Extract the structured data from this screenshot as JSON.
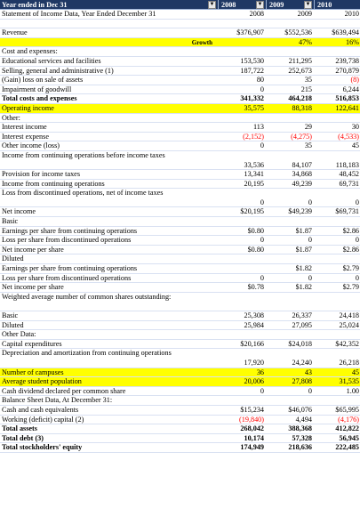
{
  "header": {
    "label": "Year ended in Dec 31",
    "years": [
      "2008",
      "2009",
      "2010"
    ],
    "dropdown_icon": "chevron-down-icon"
  },
  "rows": [
    {
      "label": "Statement of Income Data, Year Ended December 31",
      "values": [
        "2008",
        "2009",
        "2010"
      ]
    },
    {
      "label": "",
      "values": [
        "",
        "",
        ""
      ]
    },
    {
      "label": "Revenue",
      "values": [
        "$376,907",
        "$552,536",
        "$639,494"
      ]
    },
    {
      "label": "Growth",
      "values": [
        "",
        "47%",
        "16%"
      ],
      "style": "growth"
    },
    {
      "label": "Cost and expenses:",
      "values": [
        "",
        "",
        ""
      ]
    },
    {
      "label": "Educational services and facilities",
      "values": [
        "153,530",
        "211,295",
        "239,738"
      ]
    },
    {
      "label": "Selling, general and administrative (1)",
      "values": [
        "187,722",
        "252,673",
        "270,879"
      ]
    },
    {
      "label": "(Gain) loss on sale of assets",
      "values": [
        "80",
        "35",
        "(8)"
      ],
      "neg": [
        false,
        false,
        true
      ]
    },
    {
      "label": "Impairment of goodwill",
      "values": [
        "0",
        "215",
        "6,244"
      ]
    },
    {
      "label": "Total costs and expenses",
      "values": [
        "341,332",
        "464,218",
        "516,853"
      ],
      "style": "bold"
    },
    {
      "label": "Operating income",
      "values": [
        "35,575",
        "88,318",
        "122,641"
      ],
      "style": "yellow"
    },
    {
      "label": "Other:",
      "values": [
        "",
        "",
        ""
      ]
    },
    {
      "label": "Interest income",
      "values": [
        "113",
        "29",
        "30"
      ]
    },
    {
      "label": "Interest expense",
      "values": [
        "(2,152)",
        "(4,275)",
        "(4,533)"
      ],
      "neg": [
        true,
        true,
        true
      ]
    },
    {
      "label": "Other income (loss)",
      "values": [
        "0",
        "35",
        "45"
      ]
    },
    {
      "label": "Income from continuing operations before income taxes",
      "values": [
        "33,536",
        "84,107",
        "118,183"
      ],
      "style": "tall"
    },
    {
      "label": "Provision for income taxes",
      "values": [
        "13,341",
        "34,868",
        "48,452"
      ]
    },
    {
      "label": "Income from continuing operations",
      "values": [
        "20,195",
        "49,239",
        "69,731"
      ]
    },
    {
      "label": "Loss from discontinued operations, net of income taxes",
      "values": [
        "0",
        "0",
        "0"
      ],
      "style": "tall"
    },
    {
      "label": "Net income",
      "values": [
        "$20,195",
        "$49,239",
        "$69,731"
      ]
    },
    {
      "label": "Basic",
      "values": [
        "",
        "",
        ""
      ]
    },
    {
      "label": "Earnings per share from continuing operations",
      "values": [
        "$0.80",
        "$1.87",
        "$2.86"
      ]
    },
    {
      "label": "Loss per share from discontinued operations",
      "values": [
        "0",
        "0",
        "0"
      ]
    },
    {
      "label": "Net income per share",
      "values": [
        "$0.80",
        "$1.87",
        "$2.86"
      ]
    },
    {
      "label": "Diluted",
      "values": [
        "",
        "",
        ""
      ]
    },
    {
      "label": "Earnings per share from continuing operations",
      "values": [
        "",
        "$1.82",
        "$2.79"
      ]
    },
    {
      "label": "Loss per share from discontinued operations",
      "values": [
        "0",
        "0",
        "0"
      ]
    },
    {
      "label": "Net income per share",
      "values": [
        "$0.78",
        "$1.82",
        "$2.79"
      ]
    },
    {
      "label": "Weighted average number of common shares outstanding:",
      "values": [
        "",
        "",
        ""
      ],
      "style": "tall"
    },
    {
      "label": "Basic",
      "values": [
        "25,308",
        "26,337",
        "24,418"
      ]
    },
    {
      "label": "Diluted",
      "values": [
        "25,984",
        "27,095",
        "25,024"
      ]
    },
    {
      "label": "Other Data:",
      "values": [
        "",
        "",
        ""
      ]
    },
    {
      "label": "Capital expenditures",
      "values": [
        "$20,166",
        "$24,018",
        "$42,352"
      ]
    },
    {
      "label": "Depreciation and amortization from continuing operations",
      "values": [
        "17,920",
        "24,240",
        "26,218"
      ],
      "style": "tall"
    },
    {
      "label": "Number of campuses",
      "values": [
        "36",
        "43",
        "45"
      ],
      "style": "yellow"
    },
    {
      "label": "Average student population",
      "values": [
        "20,006",
        "27,808",
        "31,535"
      ],
      "style": "yellow"
    },
    {
      "label": "Cash dividend declared per common share",
      "values": [
        "0",
        "0",
        "1.00"
      ]
    },
    {
      "label": "Balance Sheet Data, At December 31:",
      "values": [
        "",
        "",
        ""
      ]
    },
    {
      "label": "Cash and cash equivalents",
      "values": [
        "$15,234",
        "$46,076",
        "$65,995"
      ]
    },
    {
      "label": "Working (deficit) capital (2)",
      "values": [
        "(19,840)",
        "4,494",
        "(4,176)"
      ],
      "neg": [
        true,
        false,
        true
      ]
    },
    {
      "label": "Total assets",
      "values": [
        "268,042",
        "388,368",
        "412,822"
      ],
      "style": "bold"
    },
    {
      "label": "Total debt (3)",
      "values": [
        "10,174",
        "57,328",
        "56,945"
      ],
      "style": "bold"
    },
    {
      "label": "Total stockholders' equity",
      "values": [
        "174,949",
        "218,636",
        "222,485"
      ],
      "style": "bold"
    }
  ]
}
